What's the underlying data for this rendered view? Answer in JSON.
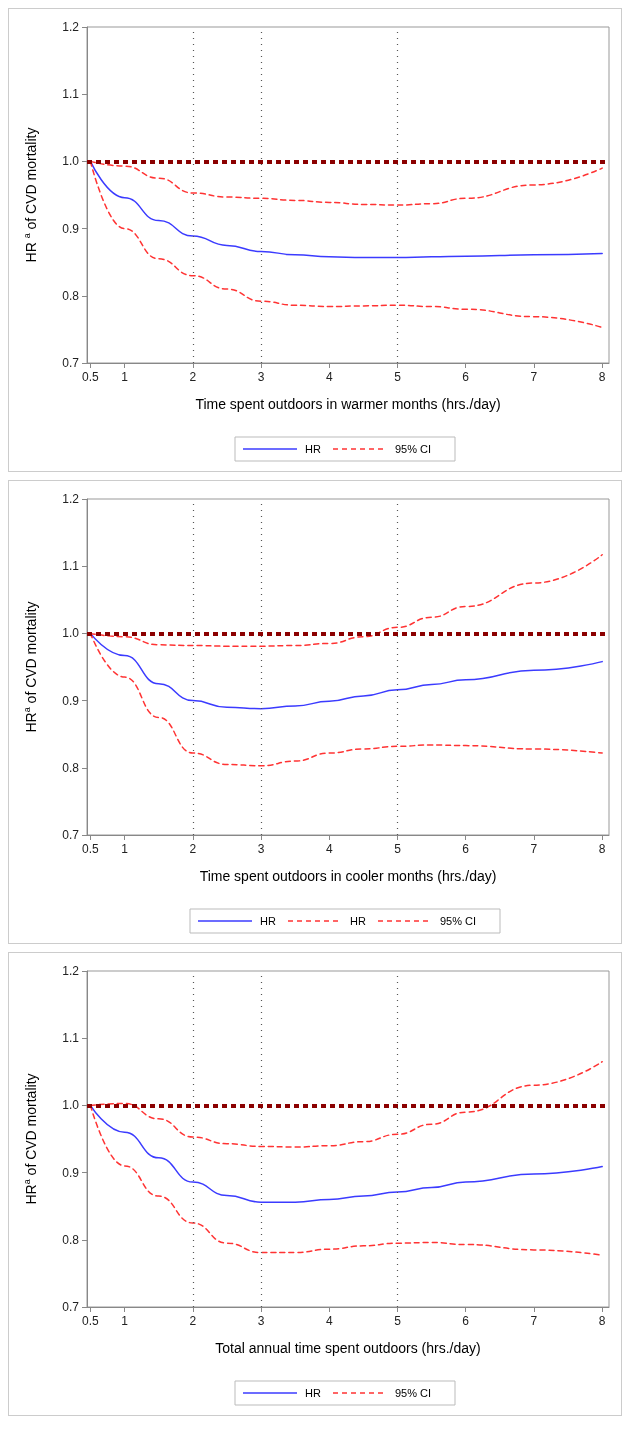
{
  "chart_data": [
    {
      "type": "line",
      "xlabel": "Time spent outdoors in warmer months (hrs./day)",
      "ylabel": "HR $^{a}$ of CVD mortality",
      "x": [
        0.5,
        1,
        1.5,
        2,
        2.5,
        3,
        3.5,
        4,
        4.5,
        5,
        5.5,
        6,
        7,
        8
      ],
      "xlim": [
        0.45,
        8.1
      ],
      "xticks": [
        0.5,
        1,
        2,
        3,
        4,
        5,
        6,
        7,
        8
      ],
      "ylim": [
        0.7,
        1.2
      ],
      "yticks": [
        {
          "value": 0.7,
          "label": "0.7"
        },
        {
          "value": 0.8,
          "label": "0.8"
        },
        {
          "value": 0.9,
          "label": "0.9"
        },
        {
          "value": 1,
          "label": "1.0"
        },
        {
          "value": 1.1,
          "label": "1.1"
        },
        {
          "value": 1.2,
          "label": "1.2"
        }
      ],
      "legend": "bottom",
      "marker": "none",
      "series": [
        {
          "name": "HR",
          "color": "#3b3bff",
          "line_style": "solid",
          "values": [
            1.0,
            0.946,
            0.912,
            0.889,
            0.875,
            0.866,
            0.861,
            0.858,
            0.857,
            0.857,
            0.858,
            0.859,
            0.861,
            0.863
          ]
        },
        {
          "color": "#ff3333",
          "line_style": "dashed",
          "values": [
            1.0,
            0.9,
            0.855,
            0.83,
            0.81,
            0.792,
            0.786,
            0.784,
            0.785,
            0.786,
            0.784,
            0.78,
            0.769,
            0.753
          ]
        },
        {
          "name": "95% CI",
          "color": "#ff3333",
          "line_style": "dashed",
          "values": [
            1.0,
            0.993,
            0.975,
            0.953,
            0.947,
            0.945,
            0.942,
            0.939,
            0.936,
            0.935,
            0.937,
            0.945,
            0.965,
            0.99
          ]
        }
      ],
      "ref_lines": [
        {
          "axis": "y",
          "value": 1,
          "color": "#8b0000",
          "line_style": "dashed"
        },
        {
          "axis": "x",
          "value": 2,
          "color": "#555555",
          "line_style": "dotted"
        },
        {
          "axis": "x",
          "value": 3,
          "color": "#555555",
          "line_style": "dotted"
        },
        {
          "axis": "x",
          "value": 5,
          "color": "#555555",
          "line_style": "dotted"
        }
      ]
    },
    {
      "type": "line",
      "xlabel": "Time spent outdoors in cooler months (hrs./day)",
      "ylabel": "HR$^{a}$ of CVD mortality",
      "x": [
        0.5,
        1,
        1.5,
        2,
        2.5,
        3,
        3.5,
        4,
        4.5,
        5,
        5.5,
        6,
        7,
        8
      ],
      "xlim": [
        0.45,
        8.1
      ],
      "xticks": [
        0.5,
        1,
        2,
        3,
        4,
        5,
        6,
        7,
        8
      ],
      "ylim": [
        0.7,
        1.2
      ],
      "yticks": [
        {
          "value": 0.7,
          "label": "0.7"
        },
        {
          "value": 0.8,
          "label": "0.8"
        },
        {
          "value": 0.9,
          "label": "0.9"
        },
        {
          "value": 1,
          "label": "1.0"
        },
        {
          "value": 1.1,
          "label": "1.1"
        },
        {
          "value": 1.2,
          "label": "1.2"
        }
      ],
      "legend": "bottom",
      "marker": "none",
      "series": [
        {
          "name": "HR",
          "color": "#3b3bff",
          "line_style": "solid",
          "values": [
            1.0,
            0.967,
            0.925,
            0.9,
            0.89,
            0.888,
            0.892,
            0.899,
            0.907,
            0.916,
            0.924,
            0.931,
            0.945,
            0.958
          ]
        },
        {
          "name": "HR",
          "color": "#ff3333",
          "line_style": "dashed",
          "values": [
            1.0,
            0.935,
            0.875,
            0.822,
            0.805,
            0.803,
            0.81,
            0.822,
            0.828,
            0.832,
            0.834,
            0.833,
            0.828,
            0.822
          ]
        },
        {
          "name": "95% CI",
          "color": "#ff3333",
          "line_style": "dashed",
          "values": [
            1.0,
            0.995,
            0.983,
            0.982,
            0.981,
            0.981,
            0.982,
            0.985,
            0.995,
            1.009,
            1.024,
            1.04,
            1.075,
            1.117
          ]
        }
      ],
      "ref_lines": [
        {
          "axis": "y",
          "value": 1,
          "color": "#8b0000",
          "line_style": "dashed"
        },
        {
          "axis": "x",
          "value": 2,
          "color": "#555555",
          "line_style": "dotted"
        },
        {
          "axis": "x",
          "value": 3,
          "color": "#555555",
          "line_style": "dotted"
        },
        {
          "axis": "x",
          "value": 5,
          "color": "#555555",
          "line_style": "dotted"
        }
      ]
    },
    {
      "type": "line",
      "xlabel": "Total annual time spent outdoors (hrs./day)",
      "ylabel": "HR$^{a}$ of CVD mortality",
      "x": [
        0.5,
        1,
        1.5,
        2,
        2.5,
        3,
        3.5,
        4,
        4.5,
        5,
        5.5,
        6,
        7,
        8
      ],
      "xlim": [
        0.45,
        8.1
      ],
      "xticks": [
        0.5,
        1,
        2,
        3,
        4,
        5,
        6,
        7,
        8
      ],
      "ylim": [
        0.7,
        1.2
      ],
      "yticks": [
        {
          "value": 0.7,
          "label": "0.7"
        },
        {
          "value": 0.8,
          "label": "0.8"
        },
        {
          "value": 0.9,
          "label": "0.9"
        },
        {
          "value": 1,
          "label": "1.0"
        },
        {
          "value": 1.1,
          "label": "1.1"
        },
        {
          "value": 1.2,
          "label": "1.2"
        }
      ],
      "legend": "bottom",
      "marker": "none",
      "series": [
        {
          "name": "HR",
          "color": "#3b3bff",
          "line_style": "solid",
          "values": [
            1.0,
            0.96,
            0.922,
            0.886,
            0.866,
            0.856,
            0.856,
            0.86,
            0.865,
            0.871,
            0.878,
            0.886,
            0.898,
            0.909
          ]
        },
        {
          "color": "#ff3333",
          "line_style": "dashed",
          "values": [
            1.0,
            0.91,
            0.865,
            0.825,
            0.795,
            0.781,
            0.781,
            0.786,
            0.791,
            0.795,
            0.796,
            0.793,
            0.785,
            0.777
          ]
        },
        {
          "name": "95% CI",
          "color": "#ff3333",
          "line_style": "dashed",
          "values": [
            1.0,
            1.003,
            0.98,
            0.953,
            0.943,
            0.939,
            0.938,
            0.94,
            0.946,
            0.957,
            0.972,
            0.99,
            1.03,
            1.065
          ]
        }
      ],
      "ref_lines": [
        {
          "axis": "y",
          "value": 1,
          "color": "#8b0000",
          "line_style": "dashed"
        },
        {
          "axis": "x",
          "value": 2,
          "color": "#555555",
          "line_style": "dotted"
        },
        {
          "axis": "x",
          "value": 3,
          "color": "#555555",
          "line_style": "dotted"
        },
        {
          "axis": "x",
          "value": 5,
          "color": "#555555",
          "line_style": "dotted"
        }
      ]
    }
  ]
}
